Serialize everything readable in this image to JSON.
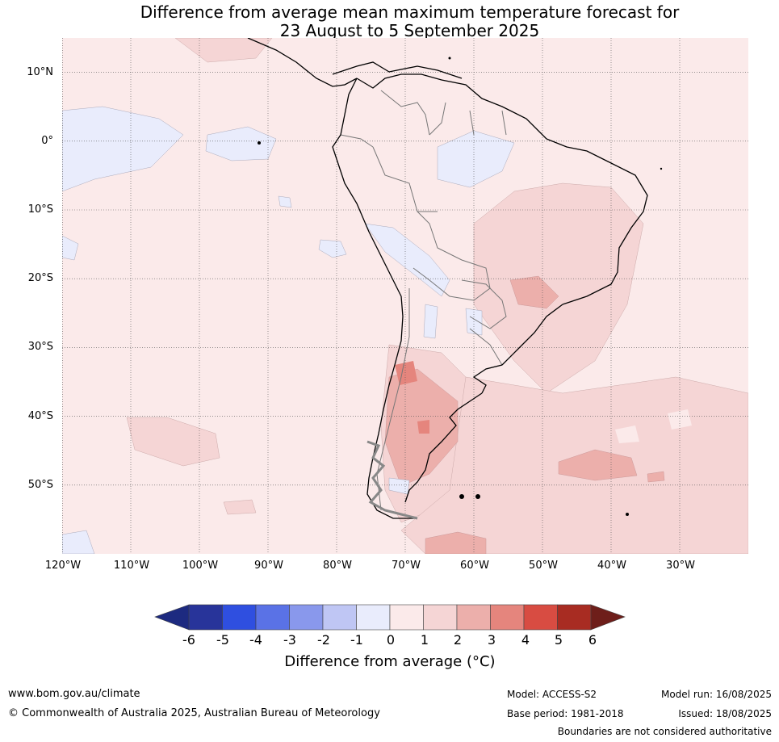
{
  "title": {
    "line1": "Difference from average mean maximum temperature forecast for",
    "line2": "23 August to 5 September 2025"
  },
  "map": {
    "region": "South America",
    "projection": "equirectangular",
    "lon_range": [
      -120,
      -20
    ],
    "lat_range": [
      -60,
      15
    ],
    "latitude_labels": [
      "10°N",
      "0°",
      "10°S",
      "20°S",
      "30°S",
      "40°S",
      "50°S"
    ],
    "longitude_labels": [
      "120°W",
      "110°W",
      "100°W",
      "90°W",
      "80°W",
      "70°W",
      "60°W",
      "50°W",
      "40°W",
      "30°W"
    ],
    "gridlines": true,
    "background_anomaly_class": "0 to 1",
    "features": [
      {
        "name": "patagonia-warm-core",
        "anomaly_class": "3 to 4"
      },
      {
        "name": "central-argentina-warm",
        "anomaly_class": "2 to 3"
      },
      {
        "name": "se-brazil-warm",
        "anomaly_class": "2 to 3"
      },
      {
        "name": "south-atlantic-warm",
        "anomaly_class": "2 to 3"
      },
      {
        "name": "eastern-pacific-cool",
        "anomaly_class": "-1 to 0"
      },
      {
        "name": "amazon-cool",
        "anomaly_class": "-1 to 0"
      },
      {
        "name": "peru-bolivia-cool",
        "anomaly_class": "-1 to 0"
      }
    ]
  },
  "colorbar": {
    "ticks": [
      "-6",
      "-5",
      "-4",
      "-3",
      "-2",
      "-1",
      "0",
      "1",
      "2",
      "3",
      "4",
      "5",
      "6"
    ],
    "colors": [
      "#28349a",
      "#2f4fe0",
      "#5a72e6",
      "#8998ec",
      "#bfc6f4",
      "#e9ecfc",
      "#fbeaea",
      "#f5d5d5",
      "#ecafab",
      "#e5857d",
      "#d84c42",
      "#a82c22"
    ],
    "below_color": "#1d2a80",
    "above_color": "#6e1e1a",
    "label": "Difference from average (°C)"
  },
  "footer": {
    "website": "www.bom.gov.au/climate",
    "copyright": "© Commonwealth of Australia 2025, Australian Bureau of Meteorology",
    "model": "Model: ACCESS-S2",
    "base_period": "Base period: 1981-2018",
    "model_run": "Model run: 16/08/2025",
    "issued": "Issued: 18/08/2025",
    "disclaimer": "Boundaries are not considered authoritative"
  }
}
